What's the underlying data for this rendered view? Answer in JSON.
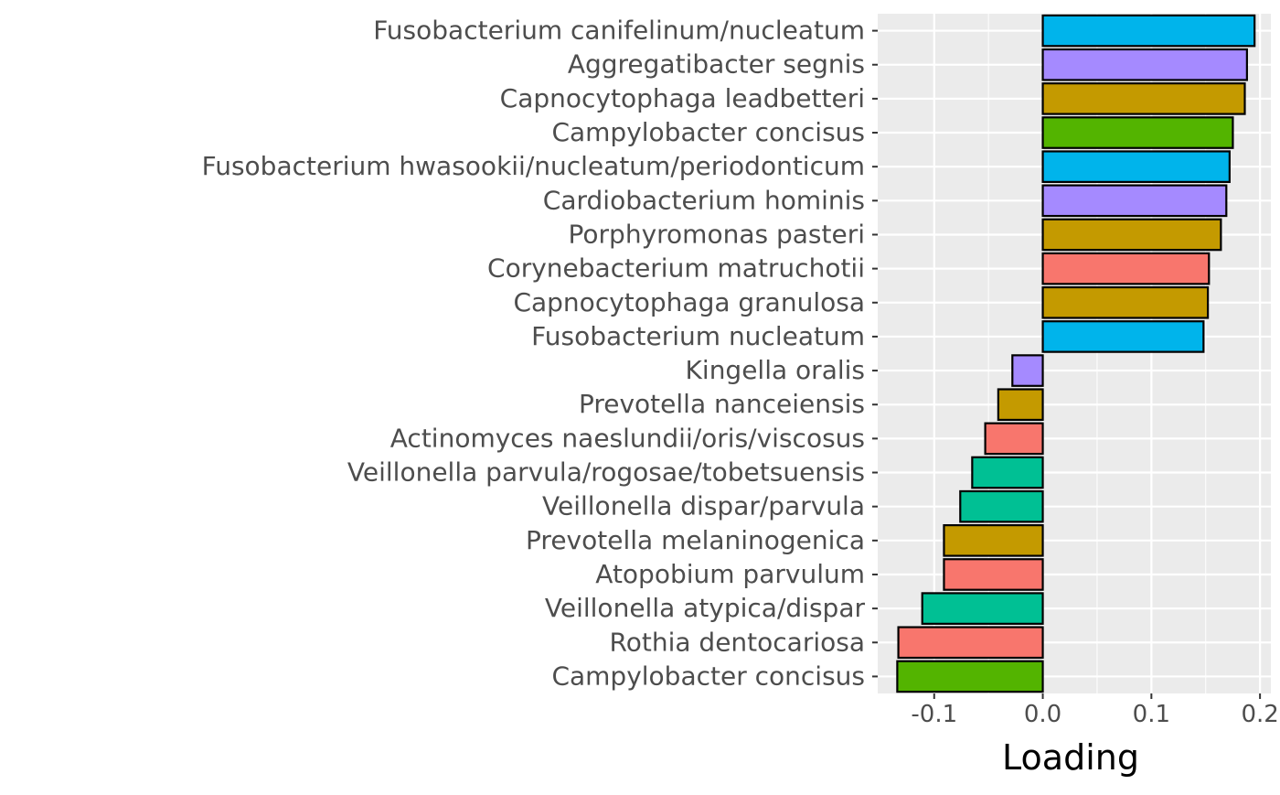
{
  "chart_data": {
    "type": "bar",
    "orientation": "horizontal",
    "title": "",
    "xlabel": "Loading",
    "ylabel": "",
    "xlim": [
      -0.152,
      0.21
    ],
    "xticks": [
      -0.1,
      0.0,
      0.1,
      0.2
    ],
    "xtick_labels": [
      "-0.1",
      "0.0",
      "0.1",
      "0.2"
    ],
    "grid": true,
    "categories": [
      "Fusobacterium canifelinum/nucleatum",
      "Aggregatibacter segnis",
      "Capnocytophaga leadbetteri",
      "Campylobacter concisus",
      "Fusobacterium hwasookii/nucleatum/periodonticum",
      "Cardiobacterium hominis",
      "Porphyromonas pasteri",
      "Corynebacterium matruchotii",
      "Capnocytophaga granulosa",
      "Fusobacterium nucleatum",
      "Kingella oralis",
      "Prevotella nanceiensis",
      "Actinomyces naeslundii/oris/viscosus",
      "Veillonella parvula/rogosae/tobetsuensis",
      "Veillonella dispar/parvula",
      "Prevotella melaninogenica",
      "Atopobium parvulum",
      "Veillonella atypica/dispar",
      "Rothia dentocariosa",
      "Campylobacter concisus"
    ],
    "values": [
      0.195,
      0.188,
      0.186,
      0.175,
      0.172,
      0.169,
      0.164,
      0.153,
      0.152,
      0.148,
      -0.028,
      -0.041,
      -0.053,
      -0.065,
      -0.076,
      -0.091,
      -0.091,
      -0.111,
      -0.133,
      -0.134
    ],
    "colors": [
      "#00B4EB",
      "#A58AFF",
      "#C49A00",
      "#53B400",
      "#00B4EB",
      "#A58AFF",
      "#C49A00",
      "#F8766D",
      "#C49A00",
      "#00B4EB",
      "#A58AFF",
      "#C49A00",
      "#F8766D",
      "#00C094",
      "#00C094",
      "#C49A00",
      "#F8766D",
      "#00C094",
      "#F8766D",
      "#53B400"
    ]
  }
}
